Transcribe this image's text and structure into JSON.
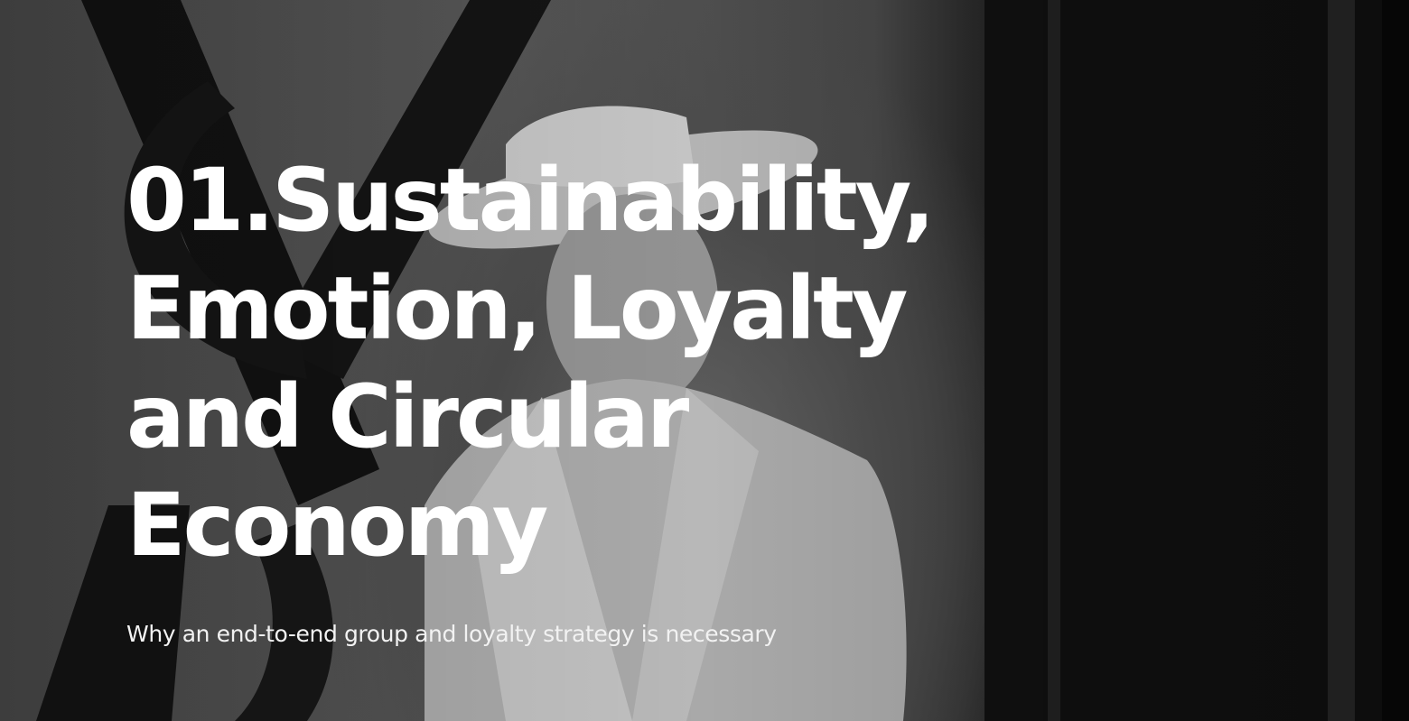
{
  "hero": {
    "title_lines": [
      "01.Sustainability,",
      "Emotion, Loyalty",
      "and Circular",
      "Economy"
    ],
    "subtitle": "Why an end-to-end group and loyalty strategy is necessary",
    "background": "monochrome-fashion-photo"
  }
}
